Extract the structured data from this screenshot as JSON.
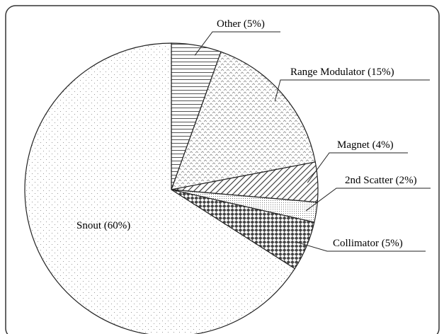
{
  "chart_data": {
    "type": "pie",
    "categories": [
      "Other",
      "Range Modulator",
      "Magnet",
      "2nd Scatter",
      "Collimator",
      "Snout"
    ],
    "values": [
      5,
      15,
      4,
      2,
      5,
      60
    ],
    "value_labels": [
      "(5%)",
      "(15%)",
      "(4%)",
      "(2%)",
      "(5%)",
      "(60%)"
    ]
  }
}
